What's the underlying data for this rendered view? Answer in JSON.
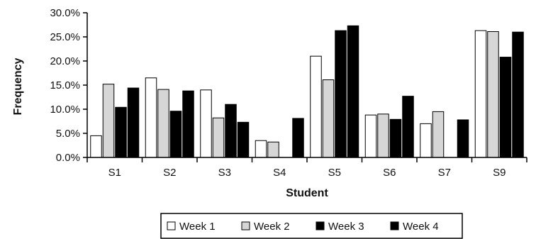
{
  "chart_data": {
    "type": "bar",
    "title": "",
    "xlabel": "Student",
    "ylabel": "Frequency",
    "categories": [
      "S1",
      "S2",
      "S3",
      "S4",
      "S5",
      "S6",
      "S7",
      "S9"
    ],
    "series": [
      {
        "name": "Week 1",
        "color": "#ffffff",
        "values": [
          4.5,
          16.5,
          14.0,
          3.5,
          21.0,
          8.8,
          7.0,
          26.3
        ]
      },
      {
        "name": "Week 2",
        "color": "#d6d6d6",
        "values": [
          15.2,
          14.1,
          8.2,
          3.2,
          16.1,
          9.0,
          9.5,
          26.1
        ]
      },
      {
        "name": "Week 3",
        "color": "#000000",
        "values": [
          10.4,
          9.6,
          11.0,
          0,
          26.3,
          7.9,
          0,
          20.8
        ]
      },
      {
        "name": "Week 4",
        "color": "#000000",
        "values": [
          14.4,
          13.8,
          7.3,
          8.1,
          27.3,
          12.7,
          7.8,
          26.0
        ]
      }
    ],
    "ylim": [
      0,
      30
    ],
    "yticks": [
      "0.0%",
      "5.0%",
      "10.0%",
      "15.0%",
      "20.0%",
      "25.0%",
      "30.0%"
    ],
    "grid": false,
    "legend_position": "bottom"
  }
}
